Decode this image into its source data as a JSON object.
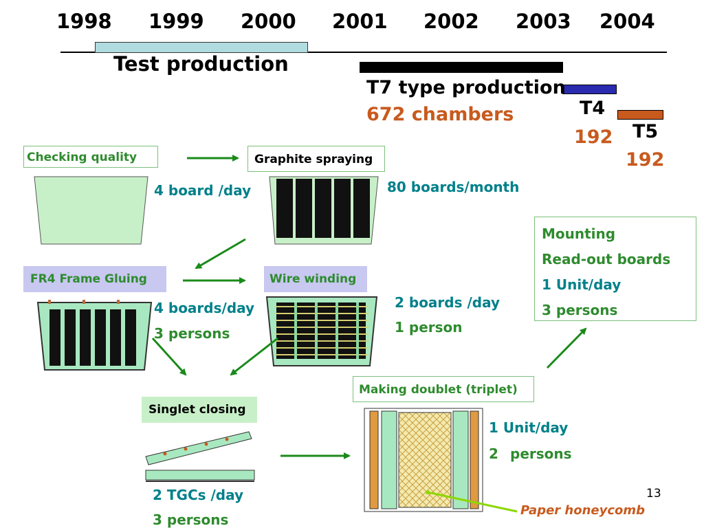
{
  "timeline": {
    "years": [
      "1998",
      "1999",
      "2000",
      "2001",
      "2002",
      "2003",
      "2004"
    ],
    "test_production_label": "Test production",
    "t7_label": "T7 type production",
    "t7_chambers": "672 chambers",
    "t4_label": "T4",
    "t4_count": "192",
    "t5_label": "T5",
    "t5_count": "192"
  },
  "steps": {
    "checking_quality": "Checking quality",
    "graphite_spraying": "Graphite spraying",
    "fr4_gluing": "FR4 Frame Gluing",
    "wire_winding": "Wire winding",
    "singlet_closing": "Singlet closing",
    "making_doublet": "Making doublet (triplet)"
  },
  "rates": {
    "checking": "4 board /day",
    "graphite": "80 boards/month",
    "fr4_rate": "4 boards/day",
    "fr4_persons": "3 persons",
    "wire_rate": "2 boards /day",
    "wire_persons": "1 person",
    "singlet_rate": "2 TGCs /day",
    "singlet_persons": "3 persons",
    "doublet_rate": "1 Unit/day",
    "doublet_num": "2",
    "doublet_persons": "persons"
  },
  "mounting": {
    "title": "Mounting",
    "subtitle": "Read-out boards",
    "rate": "1 Unit/day",
    "persons": "3 persons"
  },
  "annotation": "Paper honeycomb",
  "page_number": "13",
  "colors": {
    "green": "#2e8b2e",
    "teal": "#00808a",
    "orange": "#c85a1e",
    "navy": "#2b2bb0",
    "lightgreen": "#c8f0c8"
  }
}
